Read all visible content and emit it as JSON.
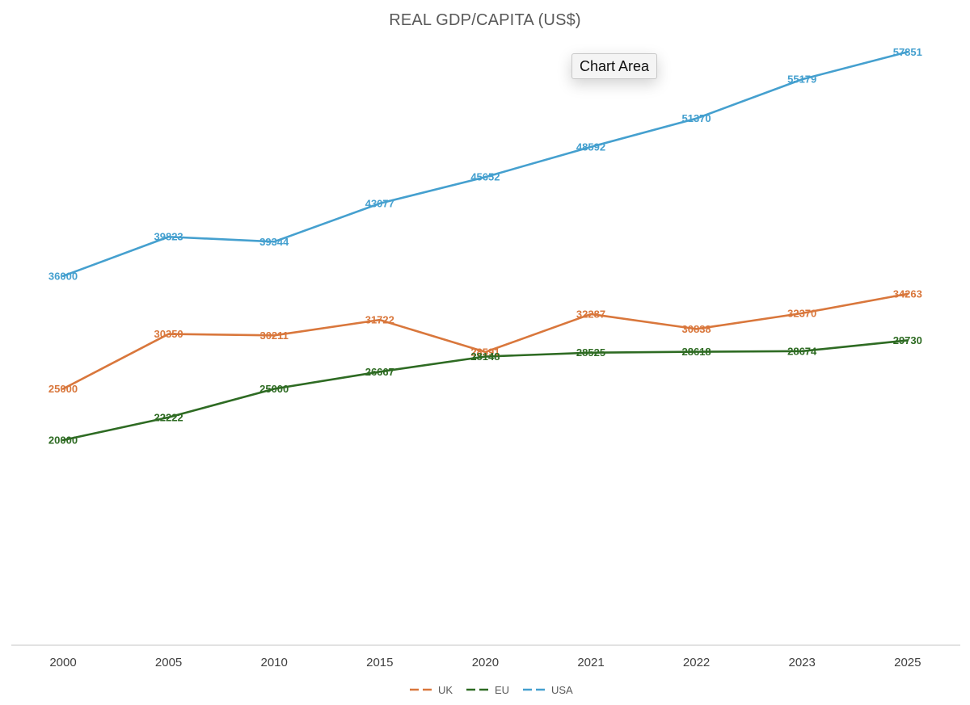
{
  "chart_data": {
    "type": "line",
    "title": "REAL GDP/CAPITA (US$)",
    "xlabel": "",
    "ylabel": "",
    "ylim": [
      0,
      64000
    ],
    "grid": false,
    "legend_position": "bottom",
    "categories": [
      "2000",
      "2005",
      "2010",
      "2015",
      "2020",
      "2021",
      "2022",
      "2023",
      "2025"
    ],
    "series": [
      {
        "name": "UK",
        "color": "#d9773c",
        "values": [
          25000,
          30350,
          30211,
          31722,
          28591,
          32287,
          30838,
          32370,
          34263
        ],
        "labels": [
          "25000",
          "30350",
          "30211",
          "31722",
          "28591",
          "32287",
          "30838",
          "32370",
          "34263"
        ]
      },
      {
        "name": "EU",
        "color": "#2e6b23",
        "values": [
          20000,
          22222,
          25000,
          26667,
          28148,
          28525,
          28618,
          28674,
          29730
        ],
        "labels": [
          "20000",
          "22222",
          "25000",
          "26667",
          "28148",
          "28525",
          "28618",
          "28674",
          "29730"
        ]
      },
      {
        "name": "USA",
        "color": "#45a0cf",
        "values": [
          36000,
          39823,
          39344,
          43077,
          45652,
          48592,
          51370,
          55179,
          57851
        ],
        "labels": [
          "36000",
          "39823",
          "39344",
          "43077",
          "45652",
          "48592",
          "51370",
          "55179",
          "57851"
        ]
      }
    ]
  },
  "tooltip": {
    "text": "Chart Area"
  }
}
